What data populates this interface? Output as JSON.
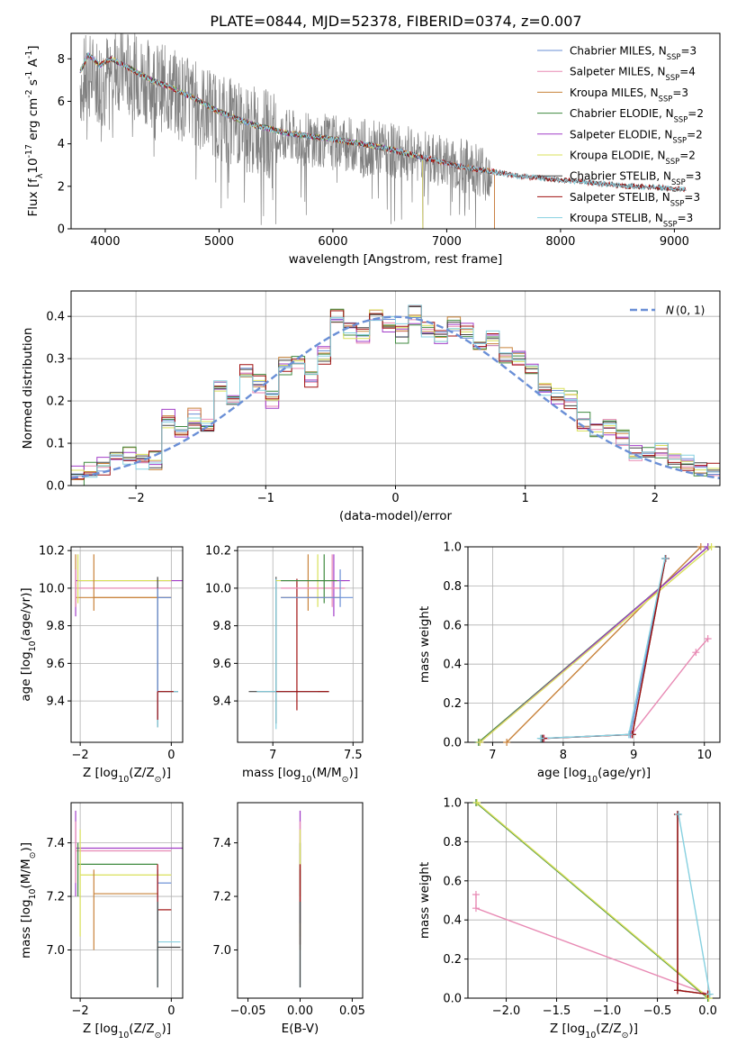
{
  "figure_title": "PLATE=0844, MJD=52378, FIBERID=0374, z=0.007",
  "colors": {
    "Chabrier MILES": "#6a8fd6",
    "Salpeter MILES": "#e88ab4",
    "Kroupa MILES": "#c8823a",
    "Chabrier ELODIE": "#3f8a3f",
    "Salpeter ELODIE": "#a23ec8",
    "Kroupa ELODIE": "#d9e05a",
    "Chabrier STELIB": "#444444",
    "Salpeter STELIB": "#a01010",
    "Kroupa STELIB": "#86d0e0",
    "data": "#808080",
    "normal": "#6a8fd6"
  },
  "chart_data": [
    {
      "id": "spectrum",
      "type": "line",
      "title": "PLATE=0844, MJD=52378, FIBERID=0374, z=0.007",
      "xlabel": "wavelength [Angstrom, rest frame]",
      "ylabel": "Flux [f$_\\lambda$10$^{-17}$ erg cm$^{-2}$ s$^{-1}$ A$^{-1}$]",
      "xlim": [
        3700,
        9400
      ],
      "ylim": [
        0,
        9.2
      ],
      "xticks": [
        4000,
        5000,
        6000,
        7000,
        8000,
        9000
      ],
      "yticks": [
        0,
        2,
        4,
        6,
        8
      ],
      "grid": false,
      "legend_position": "top-right",
      "data_curve": {
        "x": [
          3780,
          3850,
          3950,
          4100,
          4300,
          4600,
          4900,
          5200,
          5500,
          5800,
          6100,
          6400,
          6700,
          7000,
          7300,
          7600,
          7900,
          8200,
          8500,
          8800,
          9100
        ],
        "y": [
          6.8,
          7.2,
          7.0,
          7.6,
          7.1,
          6.4,
          5.6,
          4.8,
          4.4,
          4.2,
          4.0,
          3.8,
          3.5,
          3.1,
          2.8,
          2.5,
          2.35,
          2.2,
          2.05,
          1.95,
          1.85
        ]
      },
      "model_curve": {
        "x": [
          3780,
          3850,
          3950,
          4050,
          4200,
          4400,
          4600,
          4800,
          5000,
          5300,
          5600,
          5900,
          6200,
          6500,
          6800,
          7100,
          7400
        ],
        "y": [
          7.4,
          8.2,
          7.7,
          8.0,
          7.6,
          7.0,
          6.6,
          6.1,
          5.5,
          4.9,
          4.5,
          4.3,
          4.05,
          3.75,
          3.35,
          2.95,
          2.7
        ]
      },
      "series": [
        {
          "name": "Chabrier MILES, N$_{SSP}$=3",
          "end": 7420
        },
        {
          "name": "Salpeter MILES, N$_{SSP}$=4",
          "end": 7420
        },
        {
          "name": "Kroupa MILES, N$_{SSP}$=3",
          "end": 7420
        },
        {
          "name": "Chabrier ELODIE, N$_{SSP}$=2",
          "end": 6790
        },
        {
          "name": "Salpeter ELODIE, N$_{SSP}$=2",
          "end": 6790
        },
        {
          "name": "Kroupa ELODIE, N$_{SSP}$=2",
          "end": 6790
        },
        {
          "name": "Chabrier STELIB, N$_{SSP}$=3",
          "end": 9100
        },
        {
          "name": "Salpeter STELIB, N$_{SSP}$=3",
          "end": 9100
        },
        {
          "name": "Kroupa STELIB, N$_{SSP}$=3",
          "end": 9100
        }
      ]
    },
    {
      "id": "residuals",
      "type": "line",
      "xlabel": "(data-model)/error",
      "ylabel": "Normed distribution",
      "xlim": [
        -2.5,
        2.5
      ],
      "ylim": [
        0,
        0.46
      ],
      "xticks": [
        -2,
        -1,
        0,
        1,
        2
      ],
      "yticks": [
        0.0,
        0.1,
        0.2,
        0.3,
        0.4
      ],
      "grid": true,
      "legend_position": "top-right",
      "legend": "$\\mathcal{N}(0,1)$",
      "bin_edges": [
        -2.5,
        -2.4,
        -2.3,
        -2.2,
        -2.1,
        -2.0,
        -1.9,
        -1.8,
        -1.7,
        -1.6,
        -1.5,
        -1.4,
        -1.3,
        -1.2,
        -1.1,
        -1.0,
        -0.9,
        -0.8,
        -0.7,
        -0.6,
        -0.5,
        -0.4,
        -0.3,
        -0.2,
        -0.1,
        0.0,
        0.1,
        0.2,
        0.3,
        0.4,
        0.5,
        0.6,
        0.7,
        0.8,
        0.9,
        1.0,
        1.1,
        1.2,
        1.3,
        1.4,
        1.5,
        1.6,
        1.7,
        1.8,
        1.9,
        2.0,
        2.1,
        2.2,
        2.3,
        2.4,
        2.5
      ],
      "histogram": [
        0.028,
        0.032,
        0.048,
        0.07,
        0.072,
        0.06,
        0.058,
        0.155,
        0.14,
        0.16,
        0.14,
        0.235,
        0.2,
        0.27,
        0.24,
        0.21,
        0.285,
        0.3,
        0.26,
        0.31,
        0.395,
        0.37,
        0.36,
        0.4,
        0.38,
        0.36,
        0.41,
        0.37,
        0.35,
        0.38,
        0.36,
        0.33,
        0.34,
        0.31,
        0.3,
        0.27,
        0.23,
        0.21,
        0.2,
        0.15,
        0.13,
        0.14,
        0.11,
        0.07,
        0.07,
        0.085,
        0.06,
        0.05,
        0.04,
        0.03
      ],
      "offsets": [
        0.0,
        0.012,
        -0.01,
        0.018,
        -0.015,
        0.008,
        -0.006,
        0.014,
        -0.012
      ],
      "normal_curve": {
        "mean": 0,
        "sigma": 1,
        "style": "dashed"
      }
    },
    {
      "id": "age_vs_Z",
      "type": "scatter",
      "xlabel": "Z [log$_{10}$(Z/Z$_\\odot$)]",
      "ylabel": "age  [log$_{10}$(age/yr)]",
      "xlim": [
        -2.2,
        0.25
      ],
      "ylim": [
        9.18,
        10.22
      ],
      "xticks": [
        -2,
        0
      ],
      "yticks": [
        9.4,
        9.6,
        9.8,
        10.0,
        10.2
      ],
      "grid": true
    },
    {
      "id": "age_vs_mass",
      "type": "scatter",
      "xlabel": "mass [log$_{10}$(M/M$_\\odot$)]",
      "ylabel": "",
      "xlim": [
        6.78,
        7.56
      ],
      "ylim": [
        9.18,
        10.22
      ],
      "xticks": [
        7.0,
        7.5
      ],
      "yticks": [
        9.4,
        9.6,
        9.8,
        10.0,
        10.2
      ],
      "grid": true
    },
    {
      "id": "massweight_vs_age",
      "type": "line",
      "xlabel": "age  [log$_{10}$(age/yr)]",
      "ylabel": "mass weight",
      "xlim": [
        6.65,
        10.22
      ],
      "ylim": [
        0.0,
        1.0
      ],
      "xticks": [
        7,
        8,
        9,
        10
      ],
      "yticks": [
        0.0,
        0.2,
        0.4,
        0.6,
        0.8,
        1.0
      ],
      "grid": true,
      "series": [
        {
          "name": "Chabrier MILES",
          "x": [
            7.72,
            8.95,
            9.45
          ],
          "y": [
            0.02,
            0.04,
            0.94
          ]
        },
        {
          "name": "Salpeter MILES",
          "x": [
            7.73,
            8.97,
            9.88,
            10.05
          ],
          "y": [
            0.02,
            0.04,
            0.46,
            0.53
          ]
        },
        {
          "name": "Kroupa MILES",
          "x": [
            7.2,
            9.95
          ],
          "y": [
            0.0,
            1.0
          ]
        },
        {
          "name": "Chabrier ELODIE",
          "x": [
            6.8,
            10.05
          ],
          "y": [
            0.0,
            1.0
          ]
        },
        {
          "name": "Salpeter ELODIE",
          "x": [
            6.82,
            10.05
          ],
          "y": [
            0.0,
            1.0
          ]
        },
        {
          "name": "Kroupa ELODIE",
          "x": [
            6.82,
            10.1
          ],
          "y": [
            0.0,
            1.0
          ]
        },
        {
          "name": "Chabrier STELIB",
          "x": [
            7.7,
            8.98,
            9.45
          ],
          "y": [
            0.02,
            0.04,
            0.94
          ]
        },
        {
          "name": "Salpeter STELIB",
          "x": [
            7.72,
            8.98,
            9.45
          ],
          "y": [
            0.02,
            0.04,
            0.94
          ]
        },
        {
          "name": "Kroupa STELIB",
          "x": [
            7.68,
            8.93,
            9.44
          ],
          "y": [
            0.02,
            0.04,
            0.94
          ]
        }
      ]
    },
    {
      "id": "mass_vs_Z",
      "type": "scatter",
      "xlabel": "Z [log$_{10}$(Z/Z$_\\odot$)]",
      "ylabel": "mass [log$_{10}$(M/M$_\\odot$)]",
      "xlim": [
        -2.2,
        0.25
      ],
      "ylim": [
        6.82,
        7.55
      ],
      "xticks": [
        -2,
        0
      ],
      "yticks": [
        7.0,
        7.2,
        7.4
      ],
      "grid": true
    },
    {
      "id": "mass_vs_EBV",
      "type": "scatter",
      "xlabel": "E(B-V)",
      "ylabel": "",
      "xlim": [
        -0.06,
        0.06
      ],
      "ylim": [
        6.82,
        7.55
      ],
      "xticks": [
        -0.05,
        0.0,
        0.05
      ],
      "yticks": [
        7.0,
        7.2,
        7.4
      ],
      "grid": false
    },
    {
      "id": "massweight_vs_Z",
      "type": "line",
      "xlabel": "Z [log$_{10}$(Z/Z$_\\odot$)]",
      "ylabel": "mass weight",
      "xlim": [
        -2.38,
        0.12
      ],
      "ylim": [
        0.0,
        1.0
      ],
      "xticks": [
        -2.0,
        -1.5,
        -1.0,
        -0.5,
        0.0
      ],
      "yticks": [
        0.0,
        0.2,
        0.4,
        0.6,
        0.8,
        1.0
      ],
      "grid": true,
      "series": [
        {
          "name": "Salpeter MILES",
          "x": [
            -2.3,
            -2.3,
            0.0
          ],
          "y": [
            0.53,
            0.46,
            0.02
          ]
        },
        {
          "name": "Chabrier ELODIE",
          "x": [
            -2.3,
            0.0
          ],
          "y": [
            1.0,
            0.0
          ]
        },
        {
          "name": "Kroupa ELODIE",
          "x": [
            -2.29,
            0.01
          ],
          "y": [
            1.0,
            0.0
          ]
        },
        {
          "name": "Chabrier STELIB",
          "x": [
            -0.3,
            -0.3,
            0.0
          ],
          "y": [
            0.94,
            0.04,
            0.02
          ]
        },
        {
          "name": "Salpeter STELIB",
          "x": [
            -0.3,
            -0.3,
            0.0
          ],
          "y": [
            0.94,
            0.04,
            0.02
          ]
        },
        {
          "name": "Kroupa STELIB",
          "x": [
            -0.29,
            0.02
          ],
          "y": [
            0.94,
            0.02
          ]
        }
      ]
    }
  ]
}
